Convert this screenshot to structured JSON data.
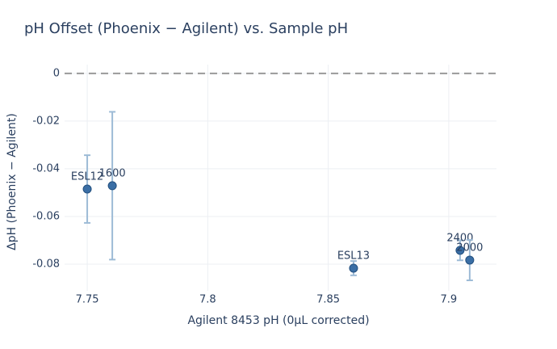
{
  "chart_data": {
    "type": "scatter",
    "title": "pH Offset (Phoenix − Agilent) vs. Sample pH",
    "x_label": "Agilent 8453 pH (0µL corrected)",
    "y_label": "ΔpH (Phoenix − Agilent)",
    "x": [
      7.75,
      7.7604,
      7.8605,
      7.9047,
      7.9087
    ],
    "values": [
      -0.0485,
      -0.0471,
      -0.0817,
      -0.0742,
      -0.0783
    ],
    "errors": [
      0.0142,
      0.031,
      0.003,
      0.0042,
      0.0085
    ],
    "labels": [
      "ESL12",
      "1600",
      "ESL13",
      "2400",
      "2000"
    ],
    "color": "#3a6ea5",
    "error_color": "#9dbbd6",
    "xlim": [
      7.7406,
      7.9198
    ],
    "ylim": [
      -0.0912,
      0.0037
    ],
    "xticks": [
      7.75,
      7.8,
      7.85,
      7.9
    ],
    "yticks": [
      0,
      -0.02,
      -0.04,
      -0.06,
      -0.08
    ],
    "grid": true,
    "zero_line": true
  }
}
